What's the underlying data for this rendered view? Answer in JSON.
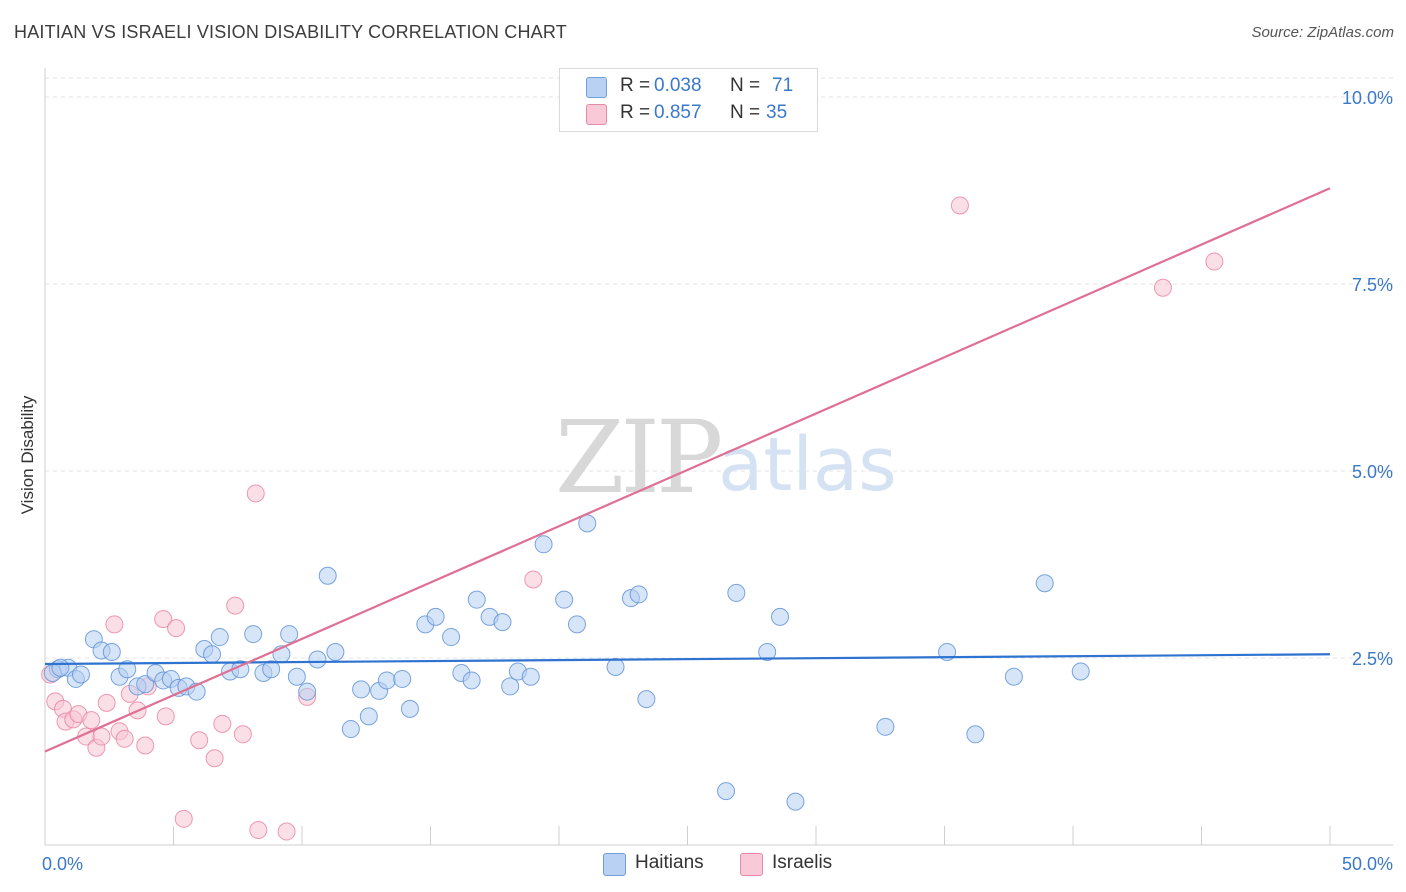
{
  "header": {
    "title": "HAITIAN VS ISRAELI VISION DISABILITY CORRELATION CHART",
    "source": "Source: ZipAtlas.com"
  },
  "watermark": {
    "zip": "ZIP",
    "atlas": "atlas"
  },
  "legend": {
    "r_label": "R =",
    "n_label": "N =",
    "rows": [
      {
        "name": "Haitians",
        "r": "0.038",
        "n": "71",
        "color": "#aac8f0",
        "edge": "#6f9fdc"
      },
      {
        "name": "Israelis",
        "r": "0.857",
        "n": "35",
        "color": "#f7bccd",
        "edge": "#e68aa8"
      }
    ]
  },
  "chart_data": {
    "type": "scatter",
    "title": "HAITIAN VS ISRAELI VISION DISABILITY CORRELATION CHART",
    "xlabel": "",
    "ylabel": "Vision Disability",
    "xlim": [
      0,
      50
    ],
    "ylim": [
      0,
      10.5
    ],
    "x_tick_labels": [
      "0.0%",
      "50.0%"
    ],
    "y_ticks": [
      2.5,
      5.0,
      7.5,
      10.0
    ],
    "y_tick_labels": [
      "2.5%",
      "5.0%",
      "7.5%",
      "10.0%"
    ],
    "series": [
      {
        "name": "Haitians",
        "color": "#5b8fd6",
        "fill": "#b6d0f3",
        "trend": {
          "x": [
            0,
            50
          ],
          "y": [
            2.42,
            2.55
          ],
          "color": "#2f73d0"
        },
        "points": [
          [
            0.5,
            2.35
          ],
          [
            0.9,
            2.37
          ],
          [
            1.2,
            2.22
          ],
          [
            1.4,
            2.28
          ],
          [
            1.9,
            2.75
          ],
          [
            2.2,
            2.6
          ],
          [
            2.6,
            2.58
          ],
          [
            2.9,
            2.25
          ],
          [
            3.2,
            2.35
          ],
          [
            3.6,
            2.12
          ],
          [
            3.9,
            2.15
          ],
          [
            4.3,
            2.3
          ],
          [
            4.6,
            2.2
          ],
          [
            4.9,
            2.22
          ],
          [
            5.2,
            2.1
          ],
          [
            5.5,
            2.12
          ],
          [
            5.9,
            2.05
          ],
          [
            6.2,
            2.62
          ],
          [
            6.5,
            2.55
          ],
          [
            6.8,
            2.78
          ],
          [
            7.2,
            2.32
          ],
          [
            7.6,
            2.35
          ],
          [
            8.1,
            2.82
          ],
          [
            8.5,
            2.3
          ],
          [
            8.8,
            2.35
          ],
          [
            9.2,
            2.55
          ],
          [
            9.5,
            2.82
          ],
          [
            9.8,
            2.25
          ],
          [
            10.2,
            2.05
          ],
          [
            10.6,
            2.48
          ],
          [
            11.0,
            3.6
          ],
          [
            11.3,
            2.58
          ],
          [
            11.9,
            1.55
          ],
          [
            12.3,
            2.08
          ],
          [
            12.6,
            1.72
          ],
          [
            13.0,
            2.06
          ],
          [
            13.3,
            2.2
          ],
          [
            13.9,
            2.22
          ],
          [
            14.2,
            1.82
          ],
          [
            14.8,
            2.95
          ],
          [
            15.2,
            3.05
          ],
          [
            15.8,
            2.78
          ],
          [
            16.2,
            2.3
          ],
          [
            16.6,
            2.2
          ],
          [
            16.8,
            3.28
          ],
          [
            17.3,
            3.05
          ],
          [
            17.8,
            2.98
          ],
          [
            18.1,
            2.12
          ],
          [
            18.4,
            2.32
          ],
          [
            18.9,
            2.25
          ],
          [
            19.4,
            4.02
          ],
          [
            20.2,
            3.28
          ],
          [
            20.7,
            2.95
          ],
          [
            21.1,
            4.3
          ],
          [
            22.2,
            2.38
          ],
          [
            22.8,
            3.3
          ],
          [
            23.1,
            3.35
          ],
          [
            23.4,
            1.95
          ],
          [
            26.5,
            0.72
          ],
          [
            26.9,
            3.37
          ],
          [
            28.1,
            2.58
          ],
          [
            28.6,
            3.05
          ],
          [
            29.2,
            0.58
          ],
          [
            32.7,
            1.58
          ],
          [
            35.1,
            2.58
          ],
          [
            36.2,
            1.48
          ],
          [
            37.7,
            2.25
          ],
          [
            38.9,
            3.5
          ],
          [
            40.3,
            2.32
          ],
          [
            0.3,
            2.3
          ],
          [
            0.6,
            2.37
          ]
        ]
      },
      {
        "name": "Israelis",
        "color": "#e9829f",
        "fill": "#f8c4d3",
        "trend": {
          "x": [
            0,
            50
          ],
          "y": [
            1.25,
            8.78
          ],
          "color": "#e06f94"
        },
        "points": [
          [
            0.2,
            2.28
          ],
          [
            0.4,
            1.92
          ],
          [
            0.7,
            1.82
          ],
          [
            0.8,
            1.65
          ],
          [
            1.1,
            1.68
          ],
          [
            1.3,
            1.75
          ],
          [
            1.6,
            1.45
          ],
          [
            1.8,
            1.67
          ],
          [
            2.0,
            1.3
          ],
          [
            2.2,
            1.45
          ],
          [
            2.4,
            1.9
          ],
          [
            2.7,
            2.95
          ],
          [
            2.9,
            1.52
          ],
          [
            3.1,
            1.42
          ],
          [
            3.3,
            2.02
          ],
          [
            3.6,
            1.8
          ],
          [
            3.9,
            1.33
          ],
          [
            4.0,
            2.12
          ],
          [
            4.6,
            3.02
          ],
          [
            4.7,
            1.72
          ],
          [
            5.1,
            2.9
          ],
          [
            5.4,
            0.35
          ],
          [
            6.0,
            1.4
          ],
          [
            6.6,
            1.16
          ],
          [
            6.9,
            1.62
          ],
          [
            7.4,
            3.2
          ],
          [
            7.7,
            1.48
          ],
          [
            8.2,
            4.7
          ],
          [
            8.3,
            0.2
          ],
          [
            9.4,
            0.18
          ],
          [
            10.2,
            1.98
          ],
          [
            19.0,
            3.55
          ],
          [
            35.6,
            8.55
          ],
          [
            43.5,
            7.45
          ],
          [
            45.5,
            7.8
          ]
        ]
      }
    ]
  }
}
